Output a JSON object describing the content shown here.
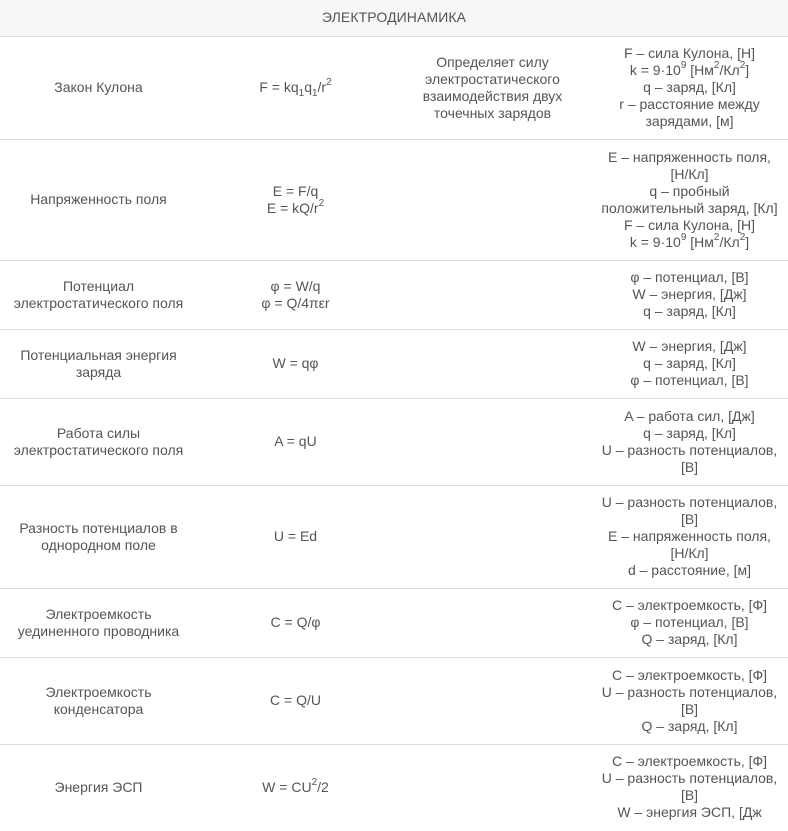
{
  "title": "ЭЛЕКТРОДИНАМИКА",
  "rows": [
    {
      "name": "Закон Кулона",
      "formulas": [
        [
          "F = kq",
          "1",
          "q",
          "1",
          "/r",
          "2"
        ]
      ],
      "description": "Определяет силу электростатического взаимодействия двух точечных зарядов",
      "vars": [
        "F – сила Кулона, [Н]",
        "k = 9·10⁹ [Нм²/Кл²]",
        "q – заряд, [Кл]",
        "r – расстояние между зарядами, [м]"
      ]
    },
    {
      "name": "Напряженность поля",
      "formulas": [
        "E = F/q",
        "E = kQ/r²"
      ],
      "description": "",
      "vars": [
        "E – напряженность поля, [Н/Кл]",
        "q – пробный положительный заряд, [Кл]",
        "F – сила Кулона, [Н]",
        "k = 9·10⁹ [Нм²/Кл²]"
      ]
    },
    {
      "name": "Потенциал электростатического поля",
      "formulas": [
        "φ = W/q",
        "φ = Q/4πεr"
      ],
      "description": "",
      "vars": [
        "φ – потенциал, [В]",
        "W – энергия, [Дж]",
        "q – заряд, [Кл]"
      ]
    },
    {
      "name": "Потенциальная энергия заряда",
      "formulas": [
        "W = qφ"
      ],
      "description": "",
      "vars": [
        "W – энергия, [Дж]",
        "q – заряд, [Кл]",
        "φ – потенциал, [В]"
      ]
    },
    {
      "name": "Работа силы электростатического поля",
      "formulas": [
        "A = qU"
      ],
      "description": "",
      "vars": [
        "A – работа сил, [Дж]",
        "q – заряд, [Кл]",
        "U – разность потенциалов, [В]"
      ]
    },
    {
      "name": "Разность потенциалов в однородном поле",
      "formulas": [
        "U = Ed"
      ],
      "description": "",
      "vars": [
        "U – разность потенциалов, [В]",
        "E – напряженность поля, [Н/Кл]",
        "d – расстояние, [м]"
      ]
    },
    {
      "name": "Электроемкость уединенного проводника",
      "formulas": [
        "C = Q/φ"
      ],
      "description": "",
      "vars": [
        "C – электроемкость, [Ф]",
        "φ – потенциал, [В]",
        "Q – заряд, [Кл]"
      ]
    },
    {
      "name": "Электроемкость конденсатора",
      "formulas": [
        "C = Q/U"
      ],
      "description": "",
      "vars": [
        "C – электроемкость, [Ф]",
        "U – разность потенциалов, [В]",
        "Q – заряд, [Кл]"
      ]
    },
    {
      "name": "Энергия ЭСП",
      "formulas": [
        "W = CU²/2"
      ],
      "description": "",
      "vars": [
        "C – электроемкость, [Ф]",
        "U – разность потенциалов, [В]",
        "W – энергия ЭСП, [Дж"
      ]
    }
  ]
}
